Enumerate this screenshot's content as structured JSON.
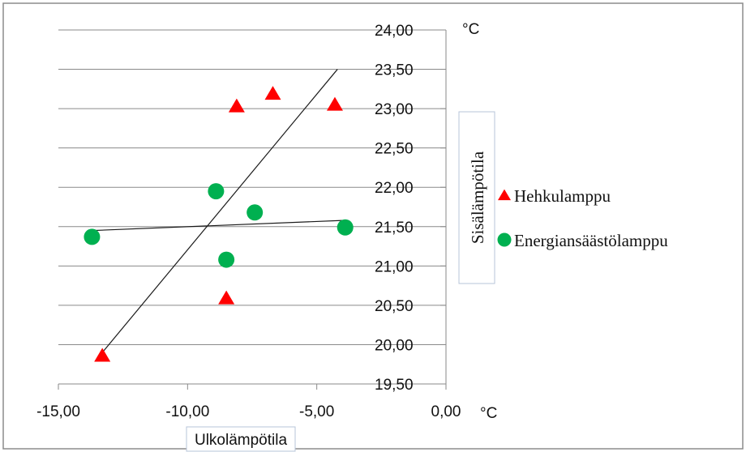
{
  "chart_data": {
    "type": "scatter",
    "title": "",
    "xlabel": "Ulkolämpötila",
    "ylabel": "Sisälämpötila",
    "x_unit": "°C",
    "y_unit": "°C",
    "xlim": [
      -15,
      0
    ],
    "ylim": [
      19.5,
      24
    ],
    "x_ticks": [
      "-15,00",
      "-10,00",
      "-5,00",
      "0,00"
    ],
    "y_ticks": [
      "19,50",
      "20,00",
      "20,50",
      "21,00",
      "21,50",
      "22,00",
      "22,50",
      "23,00",
      "23,50",
      "24,00"
    ],
    "grid": "horizontal",
    "legend_position": "right",
    "series": [
      {
        "name": "Hehkulamppu",
        "marker": "triangle",
        "color": "#ff0000",
        "points": [
          {
            "x": -13.3,
            "y": 19.85
          },
          {
            "x": -8.5,
            "y": 20.58
          },
          {
            "x": -8.1,
            "y": 23.02
          },
          {
            "x": -6.7,
            "y": 23.18
          },
          {
            "x": -4.3,
            "y": 23.04
          }
        ],
        "trendline": {
          "x": [
            -13.3,
            -4.2
          ],
          "y": [
            19.9,
            23.5
          ]
        }
      },
      {
        "name": "Energiansäästölamppu",
        "marker": "circle",
        "color": "#00b050",
        "points": [
          {
            "x": -13.7,
            "y": 21.37
          },
          {
            "x": -8.9,
            "y": 21.95
          },
          {
            "x": -8.5,
            "y": 21.08
          },
          {
            "x": -7.4,
            "y": 21.68
          },
          {
            "x": -3.9,
            "y": 21.49
          }
        ],
        "trendline": {
          "x": [
            -13.7,
            -3.9
          ],
          "y": [
            21.45,
            21.58
          ]
        }
      }
    ]
  }
}
